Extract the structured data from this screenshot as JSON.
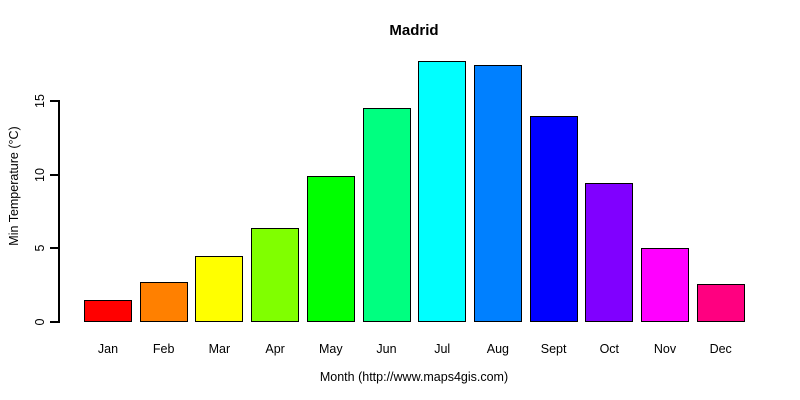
{
  "chart_data": {
    "type": "bar",
    "title": "Madrid",
    "xlabel": "Month (http://www.maps4gis.com)",
    "ylabel": "Min Temperature (°C)",
    "categories": [
      "Jan",
      "Feb",
      "Mar",
      "Apr",
      "May",
      "Jun",
      "Jul",
      "Aug",
      "Sept",
      "Oct",
      "Nov",
      "Dec"
    ],
    "values": [
      1.5,
      2.7,
      4.5,
      6.4,
      9.9,
      14.5,
      17.7,
      17.4,
      14.0,
      9.4,
      5.0,
      2.6
    ],
    "bar_colors": [
      "#FF0000",
      "#FF8000",
      "#FFFF00",
      "#80FF00",
      "#00FF00",
      "#00FF80",
      "#00FFFF",
      "#0080FF",
      "#0000FF",
      "#8000FF",
      "#FF00FF",
      "#FF0080"
    ],
    "bar_border_color": "#000000",
    "yticks": [
      0,
      5,
      10,
      15
    ],
    "ytick_labels": [
      "0",
      "5",
      "10",
      "15"
    ],
    "ylim": [
      0,
      18.4
    ],
    "grid": false,
    "legend_position": "none",
    "background_color": "#FFFFFF",
    "text_color": "#000000"
  }
}
